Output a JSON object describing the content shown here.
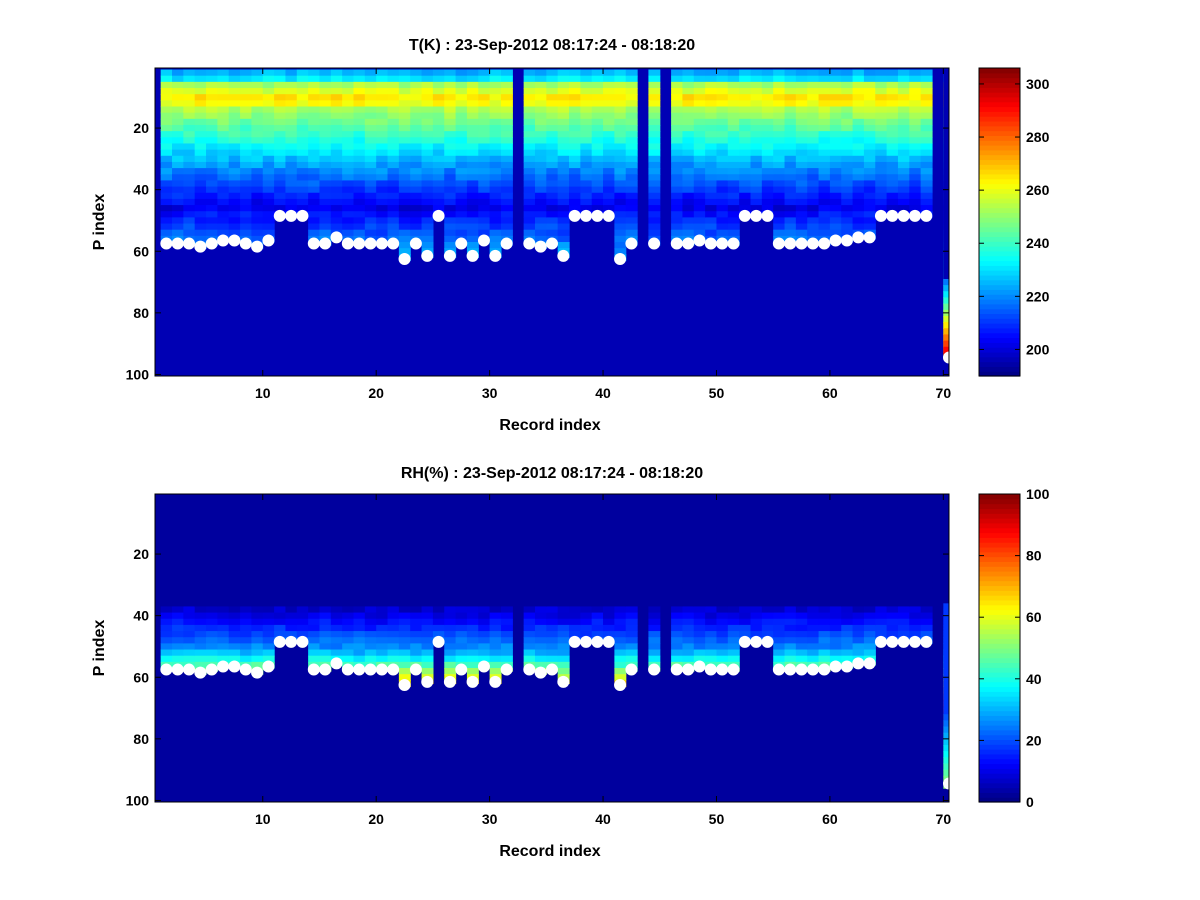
{
  "chart_data": [
    {
      "type": "heatmap",
      "title": "T(K) : 23-Sep-2012 08:17:24 - 08:18:20",
      "xlabel": "Record index",
      "ylabel": "P index",
      "xlim": [
        0.5,
        70.5
      ],
      "ylim": [
        0.5,
        100.5
      ],
      "y_reversed": true,
      "xticks": [
        10,
        20,
        30,
        40,
        50,
        60,
        70
      ],
      "yticks": [
        20,
        40,
        60,
        80,
        100
      ],
      "colormap": "jet",
      "clim": [
        190,
        306
      ],
      "colorbar_ticks": [
        200,
        220,
        240,
        260,
        280,
        300
      ],
      "field": "temperature",
      "surface_level_marker": "white-dots",
      "background_value": 196,
      "surface_index": [
        57,
        57,
        57,
        58,
        57,
        56,
        56,
        57,
        58,
        56,
        48,
        48,
        48,
        57,
        57,
        55,
        57,
        57,
        57,
        57,
        57,
        62,
        57,
        61,
        48,
        61,
        57,
        61,
        56,
        61,
        57,
        null,
        57,
        58,
        57,
        61,
        48,
        48,
        48,
        48,
        62,
        57,
        null,
        57,
        null,
        57,
        57,
        56,
        57,
        57,
        57,
        48,
        48,
        48,
        57,
        57,
        57,
        57,
        57,
        56,
        56,
        55,
        55,
        48,
        48,
        48,
        48,
        48,
        null,
        94
      ],
      "missing_records": [
        32,
        43,
        45,
        69
      ]
    },
    {
      "type": "heatmap",
      "title": "RH(%) : 23-Sep-2012 08:17:24 - 08:18:20",
      "xlabel": "Record index",
      "ylabel": "P index",
      "xlim": [
        0.5,
        70.5
      ],
      "ylim": [
        0.5,
        100.5
      ],
      "y_reversed": true,
      "xticks": [
        10,
        20,
        30,
        40,
        50,
        60,
        70
      ],
      "yticks": [
        20,
        40,
        60,
        80,
        100
      ],
      "colormap": "jet",
      "clim": [
        0,
        100
      ],
      "colorbar_ticks": [
        0,
        20,
        40,
        60,
        80,
        100
      ],
      "field": "humidity",
      "surface_level_marker": "white-dots",
      "background_value": 3,
      "surface_index": [
        57,
        57,
        57,
        58,
        57,
        56,
        56,
        57,
        58,
        56,
        48,
        48,
        48,
        57,
        57,
        55,
        57,
        57,
        57,
        57,
        57,
        62,
        57,
        61,
        48,
        61,
        57,
        61,
        56,
        61,
        57,
        null,
        57,
        58,
        57,
        61,
        48,
        48,
        48,
        48,
        62,
        57,
        null,
        57,
        null,
        57,
        57,
        56,
        57,
        57,
        57,
        48,
        48,
        48,
        57,
        57,
        57,
        57,
        57,
        56,
        56,
        55,
        55,
        48,
        48,
        48,
        48,
        48,
        null,
        94
      ],
      "missing_records": [
        32,
        43,
        45,
        69
      ]
    }
  ]
}
